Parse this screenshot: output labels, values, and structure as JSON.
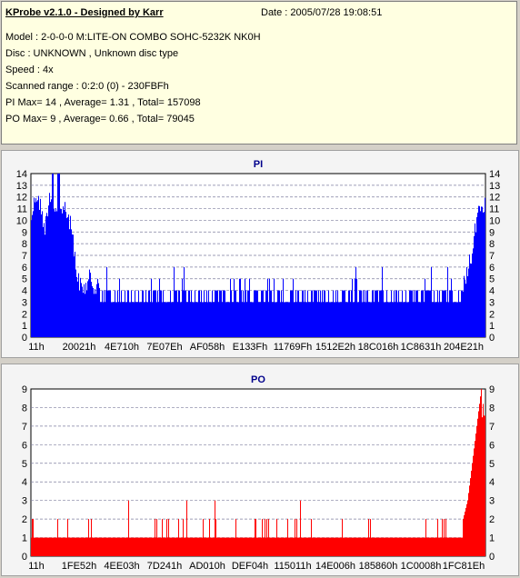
{
  "info": {
    "title": "KProbe v2.1.0 - Designed by Karr",
    "date": "Date : 2005/07/28 19:08:51",
    "lines": [
      "Model : 2-0-0-0 M:LITE-ON COMBO SOHC-5232K NK0H",
      "Disc : UNKNOWN , Unknown disc type",
      "Speed : 4x",
      "Scanned range : 0:2:0 (0) - 230FBFh",
      "PI Max= 14 , Average= 1.31 , Total= 157098",
      "PO Max= 9 , Average= 0.66 , Total= 79045"
    ]
  },
  "colors": {
    "pi": "#0000ff",
    "po": "#ff0000",
    "grid": "#7f7f9f",
    "plot_bg": "#ffffff"
  },
  "chart_data": [
    {
      "type": "bar",
      "title": "PI",
      "ylim": [
        0,
        14
      ],
      "yticks": [
        0,
        1,
        2,
        3,
        4,
        5,
        6,
        7,
        8,
        9,
        10,
        11,
        12,
        13,
        14
      ],
      "xtick_labels": [
        "11h",
        "20021h",
        "4E710h",
        "7E07Eh",
        "AF058h",
        "E133Fh",
        "11769Fh",
        "1512E2h",
        "18C016h",
        "1C8631h",
        "204E21h"
      ],
      "xrange": [
        0,
        2297791
      ],
      "grid": true,
      "profile": [
        [
          0,
          11
        ],
        [
          0.01,
          13
        ],
        [
          0.02,
          12
        ],
        [
          0.03,
          10
        ],
        [
          0.04,
          13
        ],
        [
          0.05,
          12
        ],
        [
          0.06,
          11
        ],
        [
          0.07,
          12
        ],
        [
          0.08,
          11
        ],
        [
          0.09,
          10
        ],
        [
          0.1,
          6
        ],
        [
          0.11,
          5
        ],
        [
          0.12,
          5
        ],
        [
          0.13,
          6
        ],
        [
          0.14,
          5
        ],
        [
          0.15,
          5
        ],
        [
          0.16,
          5
        ],
        [
          0.17,
          6
        ],
        [
          0.18,
          4
        ],
        [
          0.19,
          4
        ],
        [
          0.25,
          4
        ],
        [
          0.35,
          4
        ],
        [
          0.45,
          4
        ],
        [
          0.55,
          4
        ],
        [
          0.65,
          4
        ],
        [
          0.75,
          4
        ],
        [
          0.85,
          4
        ],
        [
          0.9,
          4
        ],
        [
          0.93,
          4
        ],
        [
          0.95,
          5
        ],
        [
          0.97,
          8
        ],
        [
          0.98,
          11
        ],
        [
          0.99,
          12
        ],
        [
          1.0,
          12
        ]
      ],
      "base_level": 3
    },
    {
      "type": "bar",
      "title": "PO",
      "ylim": [
        0,
        9
      ],
      "yticks": [
        0,
        1,
        2,
        3,
        4,
        5,
        6,
        7,
        8,
        9
      ],
      "xtick_labels": [
        "11h",
        "1FE52h",
        "4EE03h",
        "7D241h",
        "AD010h",
        "DEF04h",
        "115011h",
        "14E006h",
        "185860h",
        "1C0008h",
        "1FC81Eh"
      ],
      "xrange": [
        0,
        2297791
      ],
      "grid": true,
      "base_level": 1,
      "tail": [
        [
          0.95,
          2
        ],
        [
          0.96,
          3
        ],
        [
          0.97,
          5
        ],
        [
          0.98,
          7
        ],
        [
          0.99,
          9
        ],
        [
          1.0,
          7
        ]
      ]
    }
  ]
}
